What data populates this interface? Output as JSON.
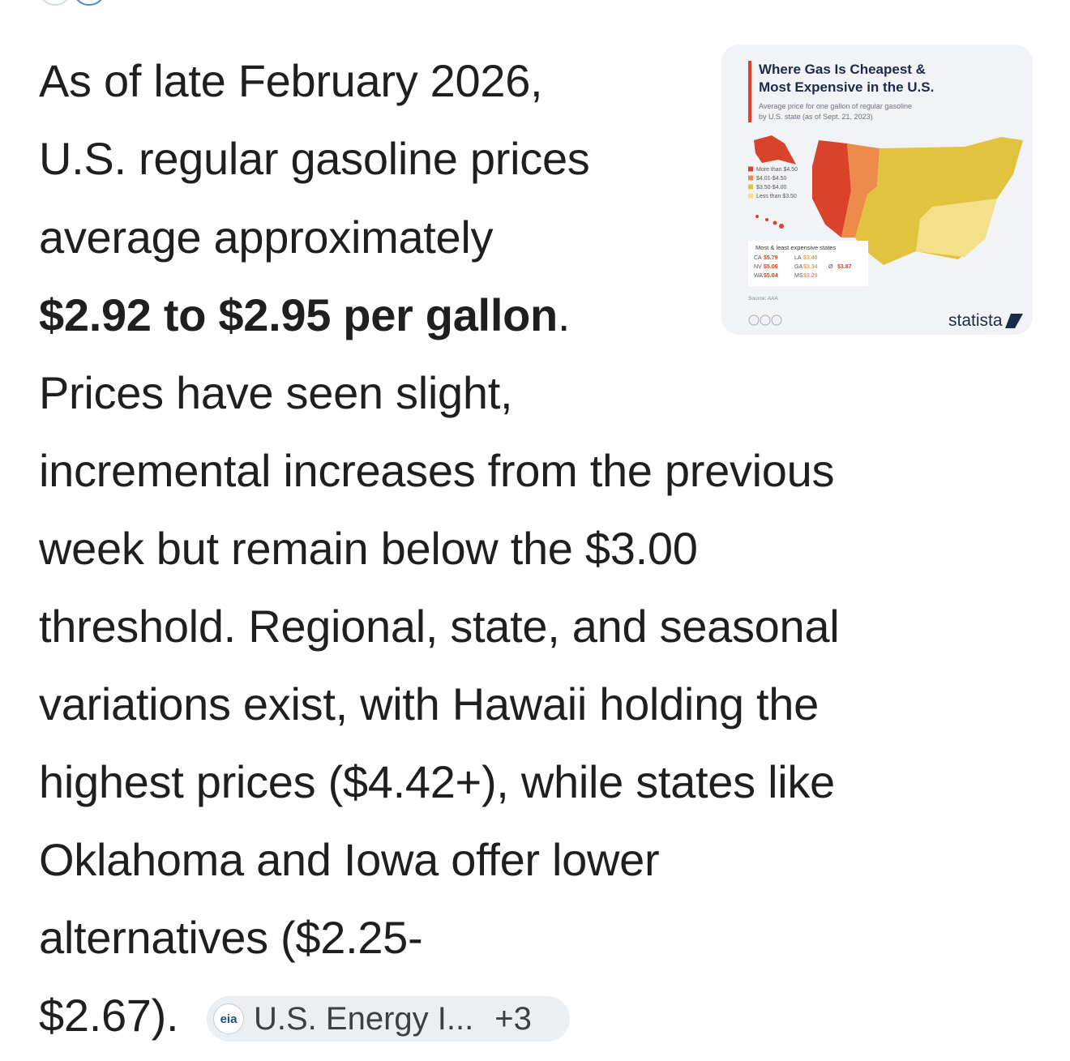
{
  "answer": {
    "lines_before": [
      "As of late February 2026,",
      "U.S. regular gasoline prices",
      "average approximately"
    ],
    "bold": "$2.92 to $2.95 per gallon",
    "bold_suffix": ".",
    "lines_after": [
      "Prices have seen slight,",
      "incremental increases from the previous",
      "week but remain below the $3.00",
      "threshold. Regional, state, and seasonal",
      "variations exist, with Hawaii holding the",
      "highest prices ($4.42+), while states like",
      "Oklahoma and Iowa offer lower",
      "alternatives ($2.25-"
    ],
    "last_line": "$2.67).",
    "source_chip": {
      "icon": "eia",
      "label": "U.S. Energy I...",
      "more": "+3"
    }
  },
  "image": {
    "title_lines": [
      "Where Gas Is Cheapest &",
      "Most Expensive in the U.S."
    ],
    "subtitle_lines": [
      "Average price for one gallon of regular gasoline",
      "by U.S. state (as of Sept. 21, 2023)"
    ],
    "legend": [
      {
        "label": "More than $4.50",
        "color": "#d8432a"
      },
      {
        "label": "$4.01-$4.50",
        "color": "#ee8a4a"
      },
      {
        "label": "$3.50-$4.00",
        "color": "#e2c33e"
      },
      {
        "label": "Less than $3.50",
        "color": "#f5e08a"
      }
    ],
    "table_title": "Most & least expensive states",
    "table": [
      [
        "CA",
        "$5.79",
        "LA",
        "$3.40"
      ],
      [
        "NV",
        "$5.06",
        "GA",
        "$3.34",
        "Ø",
        "$3.87"
      ],
      [
        "WA",
        "$5.04",
        "MS",
        "$3.29"
      ]
    ],
    "source": "Source: AAA",
    "brand": "statista"
  }
}
